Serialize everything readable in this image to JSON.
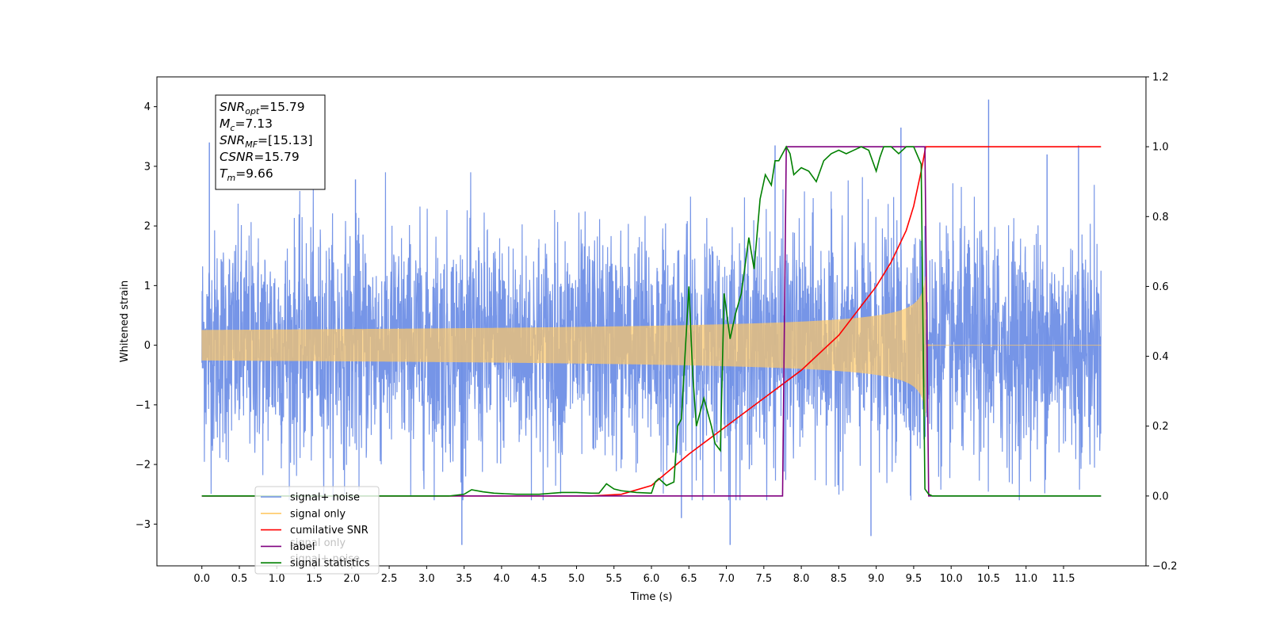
{
  "chart_data": {
    "type": "line",
    "xlabel": "Time (s)",
    "ylabel": "Whitened strain",
    "xlim": [
      -0.6,
      12.6
    ],
    "ylim_left": [
      -3.7,
      4.5
    ],
    "ylim_right": [
      -0.2,
      1.2
    ],
    "x_ticks": [
      "0.0",
      "0.5",
      "1.0",
      "1.5",
      "2.0",
      "2.5",
      "3.0",
      "3.5",
      "4.0",
      "4.5",
      "5.0",
      "5.5",
      "6.0",
      "6.5",
      "7.0",
      "7.5",
      "8.0",
      "8.5",
      "9.0",
      "9.5",
      "10.0",
      "10.5",
      "11.0",
      "11.5"
    ],
    "x_tick_values": [
      0.0,
      0.5,
      1.0,
      1.5,
      2.0,
      2.5,
      3.0,
      3.5,
      4.0,
      4.5,
      5.0,
      5.5,
      6.0,
      6.5,
      7.0,
      7.5,
      8.0,
      8.5,
      9.0,
      9.5,
      10.0,
      10.5,
      11.0,
      11.5
    ],
    "y_ticks_left": [
      "−3",
      "−2",
      "−1",
      "0",
      "1",
      "2",
      "3",
      "4"
    ],
    "y_tick_values_left": [
      -3,
      -2,
      -1,
      0,
      1,
      2,
      3,
      4
    ],
    "y_ticks_right": [
      "−0.2",
      "0.0",
      "0.2",
      "0.4",
      "0.6",
      "0.8",
      "1.0",
      "1.2"
    ],
    "y_tick_values_right": [
      -0.2,
      0.0,
      0.2,
      0.4,
      0.6,
      0.8,
      1.0,
      1.2
    ],
    "annotation": {
      "lines": [
        {
          "main": "SNR",
          "sub": "opt",
          "rest": "=15.79"
        },
        {
          "main": "M",
          "sub": "c",
          "rest": "=7.13"
        },
        {
          "main": "SNR",
          "sub": "MF",
          "rest": "=[15.13]"
        },
        {
          "main": "CSNR",
          "sub": "",
          "rest": "=15.79"
        },
        {
          "main": "T",
          "sub": "m",
          "rest": "=9.66"
        }
      ]
    },
    "legend": {
      "placement": "lower-left",
      "entries": [
        {
          "label": "signal+ noise",
          "color": "#6f8fe6"
        },
        {
          "label": "signal only",
          "color": "#ffc966"
        },
        {
          "label": "cumilative SNR",
          "color": "#ff0000"
        },
        {
          "label": "label",
          "color": "#800080"
        },
        {
          "label": "signal statistics",
          "color": "#008000"
        }
      ],
      "ghost_labels": [
        "signal only",
        "signal+ noise"
      ]
    },
    "series": [
      {
        "name": "signal+ noise",
        "axis": "left",
        "color": "#6f8fe6",
        "description": "whitened noisy strain, roughly ±2 σ band from 0.0 to 12.0 s",
        "x_range": [
          0.0,
          12.0
        ],
        "std": 0.95,
        "spikes": [
          {
            "x": 10.5,
            "y": 4.12
          },
          {
            "x": 9.33,
            "y": 3.65
          },
          {
            "x": 7.65,
            "y": 3.35
          },
          {
            "x": 2.05,
            "y": 2.78
          },
          {
            "x": 8.93,
            "y": -3.2
          },
          {
            "x": 7.05,
            "y": -3.35
          },
          {
            "x": 3.47,
            "y": -3.35
          },
          {
            "x": 11.7,
            "y": 3.35
          },
          {
            "x": 0.1,
            "y": 3.4
          },
          {
            "x": 6.4,
            "y": -2.9
          },
          {
            "x": 11.28,
            "y": 3.2
          }
        ]
      },
      {
        "name": "signal only",
        "axis": "left",
        "color": "#ffc966",
        "description": "chirp growing in amplitude until merger at 9.66 s",
        "merger_time": 9.66,
        "peak_amplitude": 1.2
      },
      {
        "name": "cumilative SNR",
        "axis": "right",
        "color": "#ff0000",
        "x": [
          0.0,
          5.2,
          5.6,
          6.0,
          6.5,
          7.0,
          7.5,
          8.0,
          8.5,
          9.0,
          9.2,
          9.4,
          9.5,
          9.6,
          9.66,
          12.0
        ],
        "y": [
          0.0,
          0.0,
          0.005,
          0.03,
          0.12,
          0.2,
          0.28,
          0.36,
          0.46,
          0.6,
          0.67,
          0.76,
          0.83,
          0.93,
          1.0,
          1.0
        ]
      },
      {
        "name": "label",
        "axis": "right",
        "color": "#800080",
        "x": [
          0.0,
          7.75,
          7.8,
          9.65,
          9.7,
          12.0
        ],
        "y": [
          0.0,
          0.0,
          1.0,
          1.0,
          0.0,
          0.0
        ]
      },
      {
        "name": "signal statistics",
        "axis": "right",
        "color": "#008000",
        "x": [
          0.0,
          3.3,
          3.5,
          3.6,
          3.75,
          3.9,
          4.2,
          4.5,
          4.8,
          5.0,
          5.2,
          5.3,
          5.4,
          5.5,
          5.6,
          5.8,
          6.0,
          6.05,
          6.1,
          6.2,
          6.3,
          6.35,
          6.4,
          6.5,
          6.55,
          6.6,
          6.7,
          6.8,
          6.85,
          6.92,
          6.97,
          7.05,
          7.12,
          7.2,
          7.3,
          7.37,
          7.45,
          7.52,
          7.6,
          7.65,
          7.7,
          7.75,
          7.8,
          7.85,
          7.9,
          8.0,
          8.1,
          8.2,
          8.3,
          8.4,
          8.5,
          8.6,
          8.7,
          8.8,
          8.9,
          9.0,
          9.05,
          9.1,
          9.15,
          9.2,
          9.3,
          9.4,
          9.5,
          9.6,
          9.65,
          9.7,
          9.75,
          9.8,
          10.0,
          11.0,
          12.0
        ],
        "y": [
          0.0,
          0.0,
          0.005,
          0.018,
          0.012,
          0.008,
          0.005,
          0.005,
          0.01,
          0.01,
          0.008,
          0.008,
          0.035,
          0.02,
          0.015,
          0.01,
          0.008,
          0.04,
          0.05,
          0.03,
          0.04,
          0.2,
          0.22,
          0.6,
          0.35,
          0.2,
          0.28,
          0.2,
          0.15,
          0.13,
          0.58,
          0.45,
          0.52,
          0.58,
          0.74,
          0.65,
          0.85,
          0.92,
          0.89,
          0.96,
          0.96,
          0.98,
          1.0,
          0.98,
          0.92,
          0.94,
          0.93,
          0.9,
          0.96,
          0.98,
          0.99,
          0.98,
          0.99,
          1.0,
          0.99,
          0.93,
          0.97,
          1.0,
          1.0,
          1.0,
          0.98,
          1.0,
          1.0,
          0.95,
          0.02,
          0.005,
          0.0,
          0.0,
          0.0,
          0.0,
          0.0
        ]
      }
    ]
  }
}
